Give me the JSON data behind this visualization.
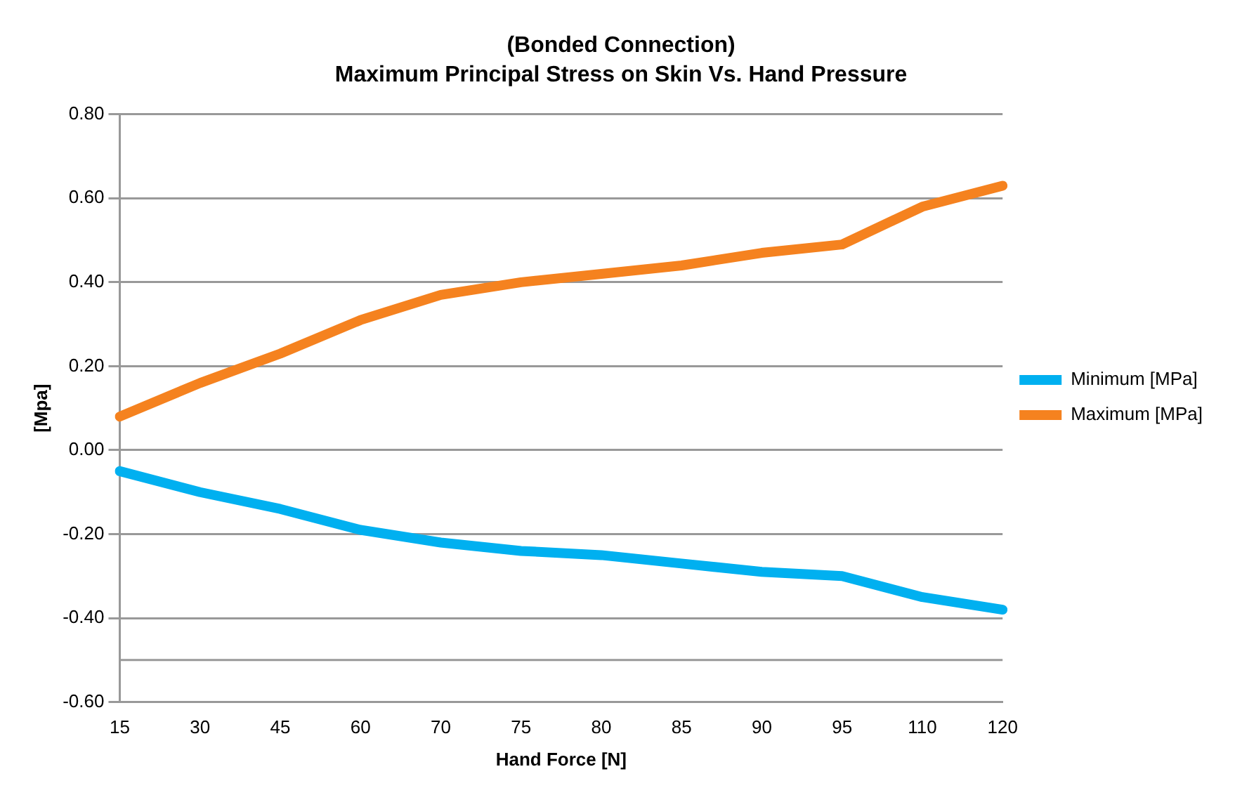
{
  "chart_data": {
    "type": "line",
    "title": "(Bonded Connection)",
    "subtitle": "Maximum Principal Stress on Skin Vs. Hand Pressure",
    "xlabel": "Hand Force [N]",
    "ylabel": "[Mpa]",
    "categories": [
      "15",
      "30",
      "45",
      "60",
      "70",
      "75",
      "80",
      "85",
      "90",
      "95",
      "110",
      "120"
    ],
    "series": [
      {
        "name": "Minimum [MPa]",
        "color": "#00b0f0",
        "values": [
          -0.05,
          -0.1,
          -0.14,
          -0.19,
          -0.22,
          -0.24,
          -0.25,
          -0.27,
          -0.29,
          -0.3,
          -0.35,
          -0.38
        ]
      },
      {
        "name": "Maximum [MPa]",
        "color": "#f5821f",
        "values": [
          0.08,
          0.16,
          0.23,
          0.31,
          0.37,
          0.4,
          0.42,
          0.44,
          0.47,
          0.49,
          0.58,
          0.63
        ]
      }
    ],
    "ylim": [
      -0.6,
      0.8
    ],
    "yticks": [
      {
        "value": -0.6,
        "label": "-0.60"
      },
      {
        "value": -0.4,
        "label": "-0.40"
      },
      {
        "value": -0.2,
        "label": "-0.20"
      },
      {
        "value": 0,
        "label": "0.00"
      },
      {
        "value": 0.2,
        "label": "0.20"
      },
      {
        "value": 0.4,
        "label": "0.40"
      },
      {
        "value": 0.6,
        "label": "0.60"
      },
      {
        "value": 0.8,
        "label": "0.80"
      }
    ],
    "ref_lines": [
      {
        "axis": "y",
        "value": -0.5,
        "color": "#999999"
      }
    ],
    "grid": "y",
    "legend": "right",
    "marker": "none",
    "line_style": "solid"
  }
}
